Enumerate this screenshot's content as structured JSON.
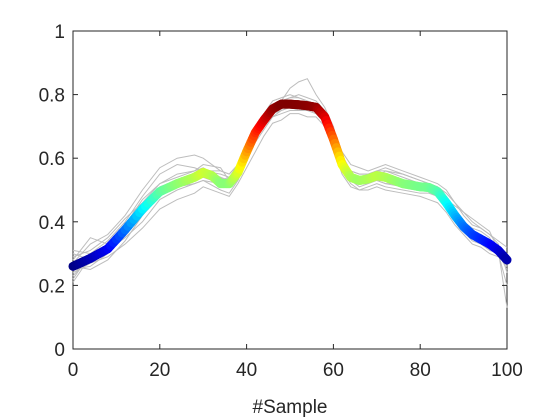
{
  "chart_data": {
    "type": "line",
    "xlabel": "#Sample",
    "ylabel": "",
    "xlim": [
      0,
      100
    ],
    "ylim": [
      0,
      1
    ],
    "x_ticks": [
      "0",
      "20",
      "40",
      "60",
      "80",
      "100"
    ],
    "y_ticks": [
      "0",
      "0.2",
      "0.4",
      "0.6",
      "0.8",
      "1"
    ],
    "grid": false,
    "colormap": "jet",
    "mean_series": {
      "x": [
        0,
        4,
        8,
        12,
        16,
        20,
        24,
        28,
        30,
        32,
        34,
        36,
        38,
        40,
        42,
        44,
        46,
        48,
        50,
        52,
        54,
        56,
        58,
        60,
        62,
        64,
        66,
        68,
        70,
        72,
        76,
        80,
        82,
        84,
        86,
        88,
        90,
        92,
        94,
        96,
        98,
        100
      ],
      "y": [
        0.26,
        0.285,
        0.315,
        0.375,
        0.44,
        0.495,
        0.52,
        0.54,
        0.555,
        0.545,
        0.52,
        0.52,
        0.555,
        0.62,
        0.68,
        0.72,
        0.755,
        0.77,
        0.77,
        0.768,
        0.765,
        0.76,
        0.73,
        0.66,
        0.58,
        0.54,
        0.53,
        0.535,
        0.545,
        0.54,
        0.52,
        0.51,
        0.508,
        0.495,
        0.46,
        0.42,
        0.385,
        0.36,
        0.345,
        0.33,
        0.31,
        0.28
      ]
    },
    "sample_series": [
      {
        "x": [
          0,
          4,
          8,
          12,
          16,
          20,
          24,
          28,
          30,
          34,
          36,
          38,
          40,
          42,
          44,
          46,
          48,
          50,
          52,
          54,
          56,
          58,
          60,
          62,
          64,
          66,
          68,
          70,
          72,
          76,
          80,
          82,
          84,
          86,
          88,
          90,
          92,
          94,
          96,
          98,
          100
        ],
        "y": [
          0.25,
          0.26,
          0.3,
          0.36,
          0.43,
          0.5,
          0.52,
          0.53,
          0.54,
          0.52,
          0.51,
          0.55,
          0.6,
          0.66,
          0.71,
          0.74,
          0.75,
          0.76,
          0.76,
          0.75,
          0.74,
          0.71,
          0.65,
          0.57,
          0.54,
          0.52,
          0.53,
          0.53,
          0.52,
          0.51,
          0.5,
          0.5,
          0.49,
          0.45,
          0.41,
          0.38,
          0.35,
          0.34,
          0.32,
          0.3,
          0.26
        ]
      },
      {
        "x": [
          0,
          4,
          8,
          12,
          16,
          20,
          24,
          28,
          30,
          34,
          36,
          38,
          40,
          42,
          44,
          46,
          48,
          50,
          52,
          54,
          56,
          58,
          60,
          62,
          64,
          66,
          68,
          70,
          72,
          76,
          80,
          82,
          84,
          86,
          88,
          90,
          92,
          94,
          96,
          98,
          100
        ],
        "y": [
          0.22,
          0.3,
          0.34,
          0.4,
          0.48,
          0.55,
          0.58,
          0.57,
          0.56,
          0.53,
          0.54,
          0.58,
          0.64,
          0.7,
          0.74,
          0.78,
          0.79,
          0.8,
          0.79,
          0.78,
          0.77,
          0.74,
          0.68,
          0.6,
          0.56,
          0.55,
          0.55,
          0.56,
          0.57,
          0.55,
          0.53,
          0.52,
          0.51,
          0.48,
          0.44,
          0.4,
          0.38,
          0.37,
          0.35,
          0.3,
          0.2
        ]
      },
      {
        "x": [
          0,
          4,
          8,
          12,
          16,
          20,
          24,
          28,
          30,
          34,
          36,
          38,
          40,
          42,
          44,
          46,
          48,
          50,
          52,
          54,
          56,
          58,
          60,
          62,
          64,
          66,
          68,
          70,
          72,
          76,
          80,
          82,
          84,
          86,
          88,
          90,
          92,
          94,
          96,
          98,
          100
        ],
        "y": [
          0.3,
          0.28,
          0.31,
          0.35,
          0.4,
          0.47,
          0.5,
          0.52,
          0.53,
          0.5,
          0.49,
          0.53,
          0.59,
          0.65,
          0.69,
          0.73,
          0.74,
          0.75,
          0.75,
          0.76,
          0.76,
          0.72,
          0.64,
          0.56,
          0.52,
          0.5,
          0.51,
          0.52,
          0.51,
          0.5,
          0.49,
          0.49,
          0.48,
          0.44,
          0.4,
          0.37,
          0.34,
          0.33,
          0.31,
          0.3,
          0.28
        ]
      },
      {
        "x": [
          0,
          4,
          8,
          12,
          16,
          20,
          24,
          28,
          30,
          34,
          36,
          38,
          40,
          42,
          44,
          46,
          48,
          50,
          52,
          54,
          56,
          58,
          60,
          62,
          64,
          66,
          68,
          70,
          72,
          76,
          80,
          82,
          84,
          86,
          88,
          90,
          92,
          94,
          96,
          98,
          100
        ],
        "y": [
          0.27,
          0.33,
          0.36,
          0.42,
          0.5,
          0.57,
          0.6,
          0.61,
          0.6,
          0.56,
          0.55,
          0.58,
          0.63,
          0.69,
          0.74,
          0.77,
          0.78,
          0.79,
          0.8,
          0.79,
          0.78,
          0.75,
          0.69,
          0.62,
          0.58,
          0.57,
          0.56,
          0.57,
          0.58,
          0.56,
          0.54,
          0.53,
          0.52,
          0.5,
          0.46,
          0.42,
          0.39,
          0.38,
          0.36,
          0.33,
          0.24
        ]
      },
      {
        "x": [
          0,
          4,
          8,
          12,
          16,
          20,
          24,
          28,
          30,
          34,
          36,
          38,
          40,
          42,
          44,
          46,
          48,
          50,
          52,
          54,
          56,
          58,
          60,
          62,
          64,
          66,
          68,
          70,
          72,
          76,
          80,
          82,
          84,
          86,
          88,
          90,
          92,
          94,
          96,
          98,
          100
        ],
        "y": [
          0.24,
          0.27,
          0.29,
          0.33,
          0.38,
          0.44,
          0.47,
          0.49,
          0.51,
          0.49,
          0.48,
          0.52,
          0.57,
          0.62,
          0.67,
          0.71,
          0.72,
          0.74,
          0.74,
          0.73,
          0.73,
          0.7,
          0.63,
          0.55,
          0.51,
          0.5,
          0.5,
          0.51,
          0.5,
          0.49,
          0.48,
          0.47,
          0.46,
          0.43,
          0.39,
          0.36,
          0.33,
          0.32,
          0.3,
          0.29,
          0.27
        ]
      },
      {
        "x": [
          0,
          4,
          8,
          12,
          16,
          20,
          24,
          28,
          30,
          34,
          36,
          38,
          40,
          42,
          44,
          46,
          48,
          50,
          52,
          54,
          56,
          58,
          60,
          62,
          64,
          66,
          68,
          70,
          72,
          76,
          80,
          82,
          84,
          86,
          88,
          90,
          92,
          94,
          96,
          98,
          100
        ],
        "y": [
          0.28,
          0.35,
          0.33,
          0.39,
          0.47,
          0.52,
          0.55,
          0.56,
          0.57,
          0.54,
          0.52,
          0.56,
          0.62,
          0.67,
          0.72,
          0.76,
          0.78,
          0.82,
          0.84,
          0.85,
          0.8,
          0.76,
          0.7,
          0.6,
          0.55,
          0.53,
          0.54,
          0.55,
          0.55,
          0.53,
          0.52,
          0.51,
          0.5,
          0.47,
          0.45,
          0.43,
          0.41,
          0.39,
          0.37,
          0.31,
          0.13
        ]
      },
      {
        "x": [
          0,
          4,
          8,
          12,
          16,
          20,
          24,
          28,
          30,
          34,
          36,
          38,
          40,
          42,
          44,
          46,
          48,
          50,
          52,
          54,
          56,
          58,
          60,
          62,
          64,
          66,
          68,
          70,
          72,
          76,
          80,
          82,
          84,
          86,
          88,
          90,
          92,
          94,
          96,
          98,
          100
        ],
        "y": [
          0.23,
          0.29,
          0.32,
          0.37,
          0.45,
          0.51,
          0.53,
          0.55,
          0.56,
          0.55,
          0.54,
          0.57,
          0.61,
          0.66,
          0.7,
          0.74,
          0.76,
          0.77,
          0.77,
          0.77,
          0.77,
          0.74,
          0.67,
          0.59,
          0.55,
          0.53,
          0.54,
          0.54,
          0.54,
          0.52,
          0.51,
          0.5,
          0.5,
          0.46,
          0.42,
          0.39,
          0.37,
          0.36,
          0.34,
          0.3,
          0.25
        ]
      },
      {
        "x": [
          0,
          4,
          8,
          12,
          16,
          20,
          24,
          28,
          30,
          34,
          36,
          38,
          40,
          42,
          44,
          46,
          48,
          50,
          52,
          54,
          56,
          58,
          60,
          62,
          64,
          66,
          68,
          70,
          72,
          76,
          80,
          82,
          84,
          86,
          88,
          90,
          92,
          94,
          96,
          98,
          100
        ],
        "y": [
          0.29,
          0.31,
          0.35,
          0.41,
          0.46,
          0.52,
          0.54,
          0.56,
          0.58,
          0.57,
          0.53,
          0.54,
          0.6,
          0.67,
          0.72,
          0.75,
          0.77,
          0.78,
          0.78,
          0.77,
          0.76,
          0.73,
          0.66,
          0.58,
          0.55,
          0.54,
          0.53,
          0.54,
          0.56,
          0.54,
          0.52,
          0.51,
          0.5,
          0.47,
          0.43,
          0.4,
          0.36,
          0.35,
          0.33,
          0.31,
          0.29
        ]
      },
      {
        "x": [
          0,
          4,
          8,
          12,
          16,
          20,
          24,
          28,
          30,
          34,
          36,
          38,
          40,
          42,
          44,
          46,
          48,
          50,
          52,
          54,
          56,
          58,
          60,
          62,
          64,
          66,
          68,
          70,
          72,
          76,
          80,
          82,
          84,
          86,
          88,
          90,
          92,
          94,
          96,
          98,
          100
        ],
        "y": [
          0.26,
          0.25,
          0.28,
          0.34,
          0.42,
          0.48,
          0.51,
          0.52,
          0.53,
          0.52,
          0.51,
          0.55,
          0.62,
          0.68,
          0.72,
          0.75,
          0.76,
          0.76,
          0.75,
          0.75,
          0.76,
          0.73,
          0.65,
          0.57,
          0.53,
          0.51,
          0.52,
          0.53,
          0.53,
          0.51,
          0.5,
          0.5,
          0.49,
          0.45,
          0.41,
          0.38,
          0.35,
          0.34,
          0.33,
          0.31,
          0.28
        ]
      },
      {
        "x": [
          0,
          4,
          8,
          12,
          16,
          20,
          24,
          28,
          30,
          34,
          36,
          38,
          40,
          42,
          44,
          46,
          48,
          50,
          52,
          54,
          56,
          58,
          60,
          62,
          64,
          66,
          68,
          70,
          72,
          76,
          80,
          82,
          84,
          86,
          88,
          90,
          92,
          94,
          96,
          98,
          100
        ],
        "y": [
          0.21,
          0.29,
          0.3,
          0.38,
          0.44,
          0.49,
          0.51,
          0.53,
          0.55,
          0.54,
          0.53,
          0.56,
          0.61,
          0.66,
          0.7,
          0.73,
          0.75,
          0.76,
          0.77,
          0.76,
          0.75,
          0.72,
          0.66,
          0.59,
          0.54,
          0.52,
          0.53,
          0.53,
          0.52,
          0.52,
          0.51,
          0.5,
          0.49,
          0.46,
          0.42,
          0.39,
          0.37,
          0.36,
          0.34,
          0.32,
          0.3
        ]
      },
      {
        "x": [
          0,
          4,
          8,
          12,
          16,
          20,
          24,
          28,
          30,
          34,
          36,
          38,
          40,
          42,
          44,
          46,
          48,
          50,
          52,
          54,
          56,
          58,
          60,
          62,
          64,
          66,
          68,
          70,
          72,
          76,
          80,
          82,
          84,
          86,
          88,
          90,
          92,
          94,
          96,
          98,
          100
        ],
        "y": [
          0.31,
          0.3,
          0.32,
          0.36,
          0.43,
          0.5,
          0.53,
          0.55,
          0.56,
          0.56,
          0.55,
          0.58,
          0.63,
          0.68,
          0.73,
          0.76,
          0.78,
          0.79,
          0.79,
          0.78,
          0.77,
          0.75,
          0.69,
          0.61,
          0.56,
          0.55,
          0.55,
          0.56,
          0.56,
          0.55,
          0.53,
          0.52,
          0.51,
          0.49,
          0.46,
          0.43,
          0.4,
          0.38,
          0.36,
          0.34,
          0.32
        ]
      }
    ]
  }
}
